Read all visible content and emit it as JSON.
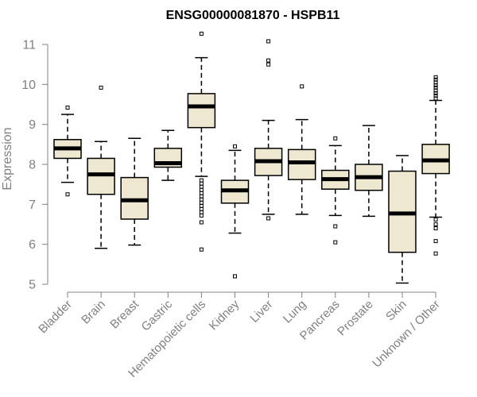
{
  "chart_data": {
    "type": "box",
    "title": "ENSG00000081870 - HSPB11",
    "xlabel": "",
    "ylabel": "Expression",
    "ylim": [
      5,
      11
    ],
    "yticks": [
      5,
      6,
      7,
      8,
      9,
      10,
      11
    ],
    "box_fill": "#efe8d0",
    "box_stroke": "#000000",
    "axis_color": "#808080",
    "categories": [
      "Bladder",
      "Brain",
      "Breast",
      "Gastric",
      "Hematopoietic cells",
      "Kidney",
      "Liver",
      "Lung",
      "Pancreas",
      "Prostate",
      "Skin",
      "Unknown / Other"
    ],
    "boxes": [
      {
        "category": "Bladder",
        "low": 7.55,
        "q1": 8.15,
        "median": 8.4,
        "q3": 8.62,
        "high": 9.25,
        "outliers": [
          9.42,
          7.25
        ]
      },
      {
        "category": "Brain",
        "low": 5.9,
        "q1": 7.25,
        "median": 7.75,
        "q3": 8.15,
        "high": 8.57,
        "outliers": [
          9.92
        ]
      },
      {
        "category": "Breast",
        "low": 5.98,
        "q1": 6.63,
        "median": 7.1,
        "q3": 7.67,
        "high": 8.65,
        "outliers": []
      },
      {
        "category": "Gastric",
        "low": 7.6,
        "q1": 7.93,
        "median": 8.03,
        "q3": 8.4,
        "high": 8.85,
        "outliers": []
      },
      {
        "category": "Hematopoietic cells",
        "low": 7.7,
        "q1": 8.92,
        "median": 9.45,
        "q3": 9.77,
        "high": 10.67,
        "outliers": [
          11.27,
          7.6,
          7.52,
          7.44,
          7.36,
          7.28,
          7.2,
          7.12,
          7.04,
          6.96,
          6.88,
          6.8,
          6.72,
          6.55,
          5.87
        ]
      },
      {
        "category": "Kidney",
        "low": 6.28,
        "q1": 7.03,
        "median": 7.35,
        "q3": 7.6,
        "high": 8.35,
        "outliers": [
          8.45,
          5.2
        ]
      },
      {
        "category": "Liver",
        "low": 6.75,
        "q1": 7.72,
        "median": 8.08,
        "q3": 8.4,
        "high": 9.1,
        "outliers": [
          11.08,
          10.6,
          10.5,
          6.65
        ]
      },
      {
        "category": "Lung",
        "low": 6.75,
        "q1": 7.62,
        "median": 8.05,
        "q3": 8.37,
        "high": 9.12,
        "outliers": [
          9.95
        ]
      },
      {
        "category": "Pancreas",
        "low": 6.72,
        "q1": 7.38,
        "median": 7.63,
        "q3": 7.85,
        "high": 8.47,
        "outliers": [
          8.65,
          6.45,
          6.05
        ]
      },
      {
        "category": "Prostate",
        "low": 6.7,
        "q1": 7.35,
        "median": 7.68,
        "q3": 8.0,
        "high": 8.97,
        "outliers": []
      },
      {
        "category": "Skin",
        "low": 5.03,
        "q1": 5.8,
        "median": 6.77,
        "q3": 7.83,
        "high": 8.22,
        "outliers": []
      },
      {
        "category": "Unknown / Other",
        "low": 6.68,
        "q1": 7.77,
        "median": 8.1,
        "q3": 8.5,
        "high": 9.6,
        "outliers": [
          10.18,
          10.12,
          10.05,
          9.98,
          9.92,
          9.85,
          9.78,
          9.72,
          9.65,
          6.62,
          6.5,
          6.4,
          6.08,
          5.77
        ]
      }
    ]
  }
}
